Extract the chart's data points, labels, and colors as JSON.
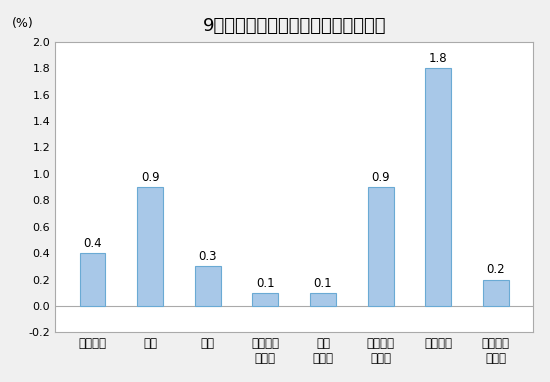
{
  "title": "9月份居民消費價格分類別環比漲跌幅",
  "ylabel": "(%)",
  "categories": [
    "食品煙酒",
    "衣着",
    "居住",
    "生活用品\n及服務",
    "交通\n和通信",
    "教育文化\n和娛樂",
    "醫療保健",
    "其他用品\n和服務"
  ],
  "values": [
    0.4,
    0.9,
    0.3,
    0.1,
    0.1,
    0.9,
    1.8,
    0.2
  ],
  "bar_color": "#a8c8e8",
  "bar_edge_color": "#6aaad4",
  "ylim": [
    -0.2,
    2.0
  ],
  "yticks": [
    -0.2,
    0.0,
    0.2,
    0.4,
    0.6,
    0.8,
    1.0,
    1.2,
    1.4,
    1.6,
    1.8,
    2.0
  ],
  "background_color": "#f0f0f0",
  "plot_bg_color": "#ffffff",
  "title_fontsize": 13,
  "label_fontsize": 8.5,
  "value_fontsize": 8.5,
  "ytick_fontsize": 8
}
